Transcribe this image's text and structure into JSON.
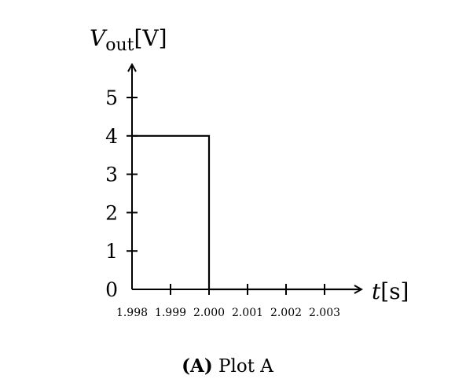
{
  "chart_data": {
    "type": "line",
    "title": "",
    "ylabel": {
      "main": "V",
      "sub": "out",
      "unit": "[V]"
    },
    "xlabel": {
      "main": "t",
      "unit": "[s]"
    },
    "x_ticks": [
      1.998,
      1.999,
      2.0,
      2.001,
      2.002,
      2.003
    ],
    "x_tick_labels": [
      "1.998",
      "1.999",
      "2.000",
      "2.001",
      "2.002",
      "2.003"
    ],
    "y_ticks": [
      0,
      1,
      2,
      3,
      4,
      5
    ],
    "y_tick_labels": [
      "0",
      "1",
      "2",
      "3",
      "4",
      "5"
    ],
    "xlim": [
      1.998,
      2.0039
    ],
    "ylim": [
      0,
      5.7
    ],
    "grid": false,
    "series": [
      {
        "x": [
          1.998,
          2.0,
          2.0,
          2.0039
        ],
        "y": [
          4,
          4,
          0,
          0
        ]
      }
    ]
  },
  "caption": {
    "label": "(A)",
    "text": "Plot A"
  }
}
